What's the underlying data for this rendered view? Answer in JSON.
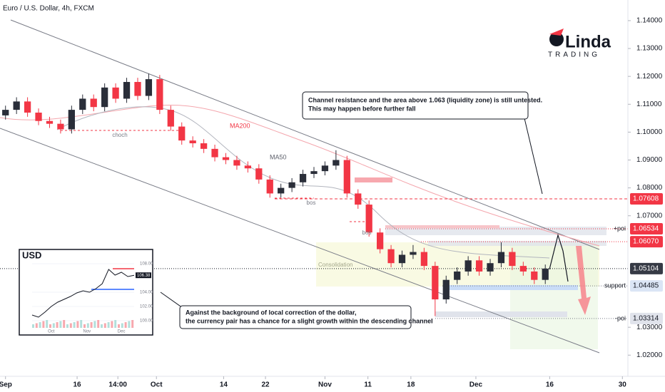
{
  "header": {
    "title": "Euro / U.S. Dollar, 4h, FXCM"
  },
  "chart_data": {
    "type": "candlestick",
    "x": [
      0,
      1,
      2,
      3,
      4,
      5,
      6,
      7,
      8,
      9,
      10,
      11,
      12,
      13,
      14,
      15,
      16,
      17,
      18,
      19,
      20,
      21,
      22,
      23,
      24,
      25,
      26,
      27,
      28,
      29,
      30,
      31,
      32,
      33,
      34,
      35,
      36,
      37,
      38,
      39,
      40,
      41,
      42,
      43,
      44,
      45,
      46,
      47,
      48,
      49
    ],
    "open": [
      1.106,
      1.108,
      1.111,
      1.107,
      1.104,
      1.103,
      1.101,
      1.108,
      1.112,
      1.109,
      1.116,
      1.112,
      1.118,
      1.113,
      1.119,
      1.108,
      1.102,
      1.097,
      1.096,
      1.094,
      1.091,
      1.09,
      1.088,
      1.087,
      1.083,
      1.078,
      1.08,
      1.082,
      1.085,
      1.086,
      1.088,
      1.09,
      1.078,
      1.074,
      1.064,
      1.058,
      1.053,
      1.056,
      1.057,
      1.052,
      1.04,
      1.047,
      1.05,
      1.054,
      1.05,
      1.053,
      1.057,
      1.052,
      1.05,
      1.047
    ],
    "high": [
      1.1095,
      1.1125,
      1.1125,
      1.1085,
      1.1055,
      1.1045,
      1.1095,
      1.1135,
      1.1135,
      1.1175,
      1.1175,
      1.1195,
      1.1195,
      1.121,
      1.1205,
      1.1095,
      1.1035,
      1.0985,
      1.0975,
      1.0955,
      1.0925,
      1.0915,
      1.0895,
      1.0885,
      1.0845,
      1.0815,
      1.0835,
      1.0865,
      1.0875,
      1.0895,
      1.0935,
      1.0915,
      1.0795,
      1.0755,
      1.0655,
      1.0595,
      1.0575,
      1.0595,
      1.0585,
      1.0535,
      1.0485,
      1.0515,
      1.0555,
      1.0555,
      1.0545,
      1.0605,
      1.0585,
      1.0535,
      1.0515,
      1.0525
    ],
    "low": [
      1.1045,
      1.1065,
      1.1055,
      1.1025,
      1.1015,
      1.0995,
      1.0995,
      1.1065,
      1.1075,
      1.1075,
      1.1105,
      1.1105,
      1.1115,
      1.1115,
      1.1065,
      1.1005,
      1.0955,
      1.0945,
      1.0925,
      1.0895,
      1.0885,
      1.0865,
      1.0855,
      1.0815,
      1.0765,
      1.0765,
      1.0785,
      1.0805,
      1.0835,
      1.0845,
      1.0865,
      1.0765,
      1.0725,
      1.0625,
      1.0565,
      1.0515,
      1.0515,
      1.0545,
      1.0505,
      1.034,
      1.0385,
      1.0455,
      1.0485,
      1.0485,
      1.0485,
      1.0515,
      1.0505,
      1.0485,
      1.0455,
      1.0455
    ],
    "close": [
      1.108,
      1.111,
      1.107,
      1.104,
      1.103,
      1.101,
      1.108,
      1.112,
      1.109,
      1.116,
      1.112,
      1.118,
      1.113,
      1.119,
      1.108,
      1.102,
      1.097,
      1.096,
      1.094,
      1.091,
      1.09,
      1.088,
      1.087,
      1.083,
      1.078,
      1.08,
      1.082,
      1.085,
      1.086,
      1.088,
      1.09,
      1.078,
      1.074,
      1.064,
      1.058,
      1.053,
      1.056,
      1.057,
      1.052,
      1.04,
      1.047,
      1.05,
      1.054,
      1.05,
      1.053,
      1.057,
      1.052,
      1.05,
      1.047,
      1.051
    ],
    "up_color": "#2a2e39",
    "down_color": "#f23645",
    "xlim": [
      -0.5,
      56.5
    ],
    "xticks": [
      {
        "value": 0,
        "label": "Sep"
      },
      {
        "value": 6.5,
        "label": "16"
      },
      {
        "value": 10.2,
        "label": "14:00"
      },
      {
        "value": 13.7,
        "label": "Oct"
      },
      {
        "value": 19.8,
        "label": "14"
      },
      {
        "value": 23.6,
        "label": "22"
      },
      {
        "value": 29,
        "label": "Nov"
      },
      {
        "value": 32.9,
        "label": "11"
      },
      {
        "value": 36.8,
        "label": "18"
      },
      {
        "value": 42.7,
        "label": "Dec"
      },
      {
        "value": 49.4,
        "label": "16"
      },
      {
        "value": 56,
        "label": "30"
      }
    ],
    "ylim": [
      1.0124,
      1.1474
    ],
    "yticks": [
      {
        "value": 1.14,
        "label": "1.14000"
      },
      {
        "value": 1.13,
        "label": "1.13000"
      },
      {
        "value": 1.12,
        "label": "1.12000"
      },
      {
        "value": 1.11,
        "label": "1.11000"
      },
      {
        "value": 1.1,
        "label": "1.10000"
      },
      {
        "value": 1.09,
        "label": "1.09000"
      },
      {
        "value": 1.08,
        "label": "1.08000"
      },
      {
        "value": 1.07,
        "label": "1.07000"
      },
      {
        "value": 1.03,
        "label": "1.03000"
      },
      {
        "value": 1.02,
        "label": "1.02000"
      }
    ],
    "levels": [
      {
        "value": 1.07608,
        "color": "#f23645"
      },
      {
        "value": 1.06534,
        "color": "#f23645",
        "tag": "+poi"
      },
      {
        "value": 1.0607,
        "label": "1.06070",
        "color": "#f23645"
      },
      {
        "value": 1.05104,
        "color": "#363a45"
      },
      {
        "value": 1.04485,
        "color": "#dbe5f5",
        "tag": "support"
      },
      {
        "value": 1.03314,
        "color": "#e0e3eb",
        "tag": "-poi"
      }
    ],
    "annotations": {
      "ma200": "MA200",
      "ma50": "MA50",
      "choch": "choch",
      "bos1": "bos",
      "bos2": "bos",
      "consolidation": "Consolidation",
      "callout_top": [
        "Channel resistance and the area above 1.063 (liquidity zone) is still untested.",
        "This may happen before further fall"
      ],
      "callout_bottom": [
        "Against the background of local correction of the dollar,",
        "the currency pair has a chance for a slight growth within the descending channel"
      ]
    }
  },
  "logo": {
    "name": "Linda",
    "sub": "TRADING"
  },
  "inset": {
    "title": "USD",
    "values": [
      100.8,
      100.5,
      101.2,
      102.0,
      102.6,
      103.0,
      103.4,
      103.9,
      104.2,
      104.0,
      104.5,
      105.2,
      107.2,
      106.4,
      106.8,
      106.2,
      106.38
    ],
    "last": "106.38",
    "ylim": [
      98,
      110
    ],
    "yticks": [
      {
        "value": 100,
        "label": "100.00"
      },
      {
        "value": 102,
        "label": "102.00"
      },
      {
        "value": 104,
        "label": "104.00"
      },
      {
        "value": 108,
        "label": "108.00"
      }
    ],
    "xticks": [
      {
        "value": 3,
        "label": "Oct"
      },
      {
        "value": 8.6,
        "label": "Nov"
      },
      {
        "value": 14,
        "label": "Dec"
      }
    ],
    "levels": [
      107.3,
      104.4
    ]
  }
}
